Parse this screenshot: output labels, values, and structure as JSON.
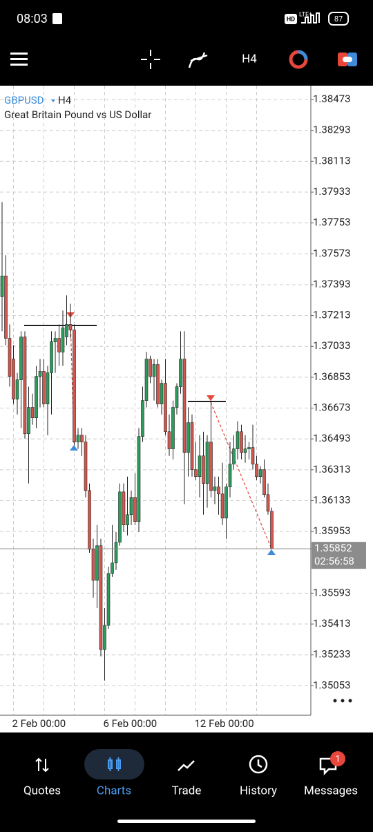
{
  "status_bar": {
    "time": "08:03",
    "hd": "HD",
    "network": "LTE+",
    "battery": "87"
  },
  "toolbar": {
    "timeframe": "H4"
  },
  "chart_data": {
    "type": "candlestick",
    "symbol": "GBPUSD",
    "timeframe": "H4",
    "title": "Great Britain Pound vs US Dollar",
    "categories": [
      null,
      null,
      null,
      "2 Feb 00:00",
      null,
      null,
      null,
      null,
      null,
      null,
      null,
      null,
      null,
      null,
      null,
      null,
      null,
      null,
      null,
      null,
      null,
      null,
      null,
      null,
      null,
      null,
      null,
      "6 Feb 00:00",
      null,
      null,
      null,
      null,
      null,
      null,
      null,
      null,
      null,
      null,
      null,
      null,
      null,
      null,
      null,
      null,
      null,
      null,
      null,
      null,
      null,
      null,
      null,
      "12 Feb 00:00",
      null,
      null,
      null,
      null,
      null,
      null,
      null,
      null,
      null,
      null,
      null,
      null,
      null,
      null,
      null,
      null,
      null,
      null,
      null,
      null
    ],
    "open": [
      1.37323,
      1.37444,
      1.3708,
      1.36959,
      1.36725,
      1.36838,
      1.37088,
      1.36523,
      1.36677,
      1.36616,
      1.36858,
      1.36887,
      1.36697,
      1.36879,
      1.3706,
      1.3708,
      1.37,
      1.37088,
      1.37161,
      1.37129,
      1.36475,
      1.36515,
      1.36475,
      1.36192,
      1.35849,
      1.35668,
      1.3587,
      1.35264,
      1.35405,
      1.35708,
      1.35769,
      1.3589,
      1.36184,
      1.35991,
      1.36051,
      1.36152,
      1.36011,
      1.36507,
      1.36717,
      1.36959,
      1.36858,
      1.36927,
      1.36697,
      1.36818,
      1.36535,
      1.36435,
      1.36677,
      1.36798,
      1.36959,
      1.36414,
      1.36588,
      1.36314,
      1.36273,
      1.36394,
      1.36233,
      1.36475,
      1.36192,
      1.36213,
      1.36172,
      1.36031,
      1.36213,
      1.36346,
      1.36435,
      1.36535,
      1.36414,
      1.36435,
      1.36443,
      1.36346,
      1.36273,
      1.36314,
      1.36168,
      1.36071
    ],
    "high": [
      1.37875,
      1.37565,
      1.37161,
      1.3704,
      1.36879,
      1.37121,
      1.37121,
      1.36798,
      1.36757,
      1.36919,
      1.36959,
      1.36959,
      1.36919,
      1.37121,
      1.37121,
      1.37161,
      1.37242,
      1.37331,
      1.37282,
      1.37161,
      1.36556,
      1.36556,
      1.36515,
      1.36233,
      1.3591,
      1.35991,
      1.3591,
      1.35506,
      1.35748,
      1.35991,
      1.3595,
      1.36233,
      1.36233,
      1.36273,
      1.36192,
      1.36293,
      1.36556,
      1.36798,
      1.37,
      1.36979,
      1.36959,
      1.36959,
      1.36838,
      1.36959,
      1.36636,
      1.36717,
      1.36818,
      1.37121,
      1.37121,
      1.36677,
      1.36636,
      1.36475,
      1.36515,
      1.36535,
      1.36515,
      1.36717,
      1.36273,
      1.36273,
      1.36354,
      1.36233,
      1.36475,
      1.36515,
      1.36596,
      1.36576,
      1.36515,
      1.36475,
      1.36576,
      1.36394,
      1.36334,
      1.36374,
      1.36233,
      1.36092
    ],
    "low": [
      1.37121,
      1.3704,
      1.36798,
      1.36697,
      1.36636,
      1.36556,
      1.36495,
      1.36233,
      1.36576,
      1.36556,
      1.36677,
      1.36677,
      1.36515,
      1.36636,
      1.36879,
      1.36919,
      1.36919,
      1.3704,
      1.3708,
      1.36455,
      1.36435,
      1.36394,
      1.36152,
      1.35829,
      1.35567,
      1.35506,
      1.35224,
      1.35083,
      1.35385,
      1.35688,
      1.35728,
      1.3587,
      1.3595,
      1.3593,
      1.35991,
      1.35991,
      1.3595,
      1.36475,
      1.36677,
      1.36818,
      1.36717,
      1.36677,
      1.36636,
      1.36515,
      1.36394,
      1.36374,
      1.36636,
      1.36757,
      1.36112,
      1.36273,
      1.36273,
      1.36253,
      1.36152,
      1.36051,
      1.36092,
      1.36152,
      1.36112,
      1.36051,
      1.35991,
      1.3591,
      1.36152,
      1.36314,
      1.36374,
      1.36374,
      1.36354,
      1.36374,
      1.36314,
      1.36253,
      1.36233,
      1.36152,
      1.36051,
      1.35849
    ],
    "close": [
      1.37444,
      1.3708,
      1.36858,
      1.36725,
      1.36838,
      1.37088,
      1.36523,
      1.36677,
      1.36616,
      1.36858,
      1.36887,
      1.36697,
      1.36879,
      1.3706,
      1.3708,
      1.37,
      1.37141,
      1.37161,
      1.37129,
      1.36475,
      1.36515,
      1.36475,
      1.36192,
      1.35849,
      1.35668,
      1.3587,
      1.35264,
      1.35405,
      1.35708,
      1.35769,
      1.3589,
      1.36184,
      1.35991,
      1.36051,
      1.36152,
      1.36011,
      1.36507,
      1.36717,
      1.36959,
      1.36858,
      1.36927,
      1.36697,
      1.36818,
      1.36535,
      1.36435,
      1.36677,
      1.36798,
      1.36959,
      1.36414,
      1.36588,
      1.36314,
      1.36273,
      1.36394,
      1.36233,
      1.36475,
      1.36192,
      1.36213,
      1.36172,
      1.36031,
      1.36213,
      1.36346,
      1.36435,
      1.36535,
      1.36414,
      1.36435,
      1.36443,
      1.36346,
      1.36273,
      1.36314,
      1.36168,
      1.36071,
      1.35852
    ],
    "up_color": "#2a9d5c",
    "down_color": "#d2574e",
    "ylim": [
      1.34881,
      1.38554
    ],
    "yticks": [
      1.38473,
      1.38293,
      1.38113,
      1.37933,
      1.37753,
      1.37573,
      1.37393,
      1.37213,
      1.37033,
      1.36853,
      1.36673,
      1.36493,
      1.36313,
      1.36133,
      1.35953,
      1.35593,
      1.35413,
      1.35233,
      1.35053
    ],
    "grid": true,
    "bid": 1.35852,
    "timer": "02:56:58"
  },
  "nav": {
    "items": [
      "Quotes",
      "Charts",
      "Trade",
      "History",
      "Messages"
    ],
    "badge": "1"
  }
}
